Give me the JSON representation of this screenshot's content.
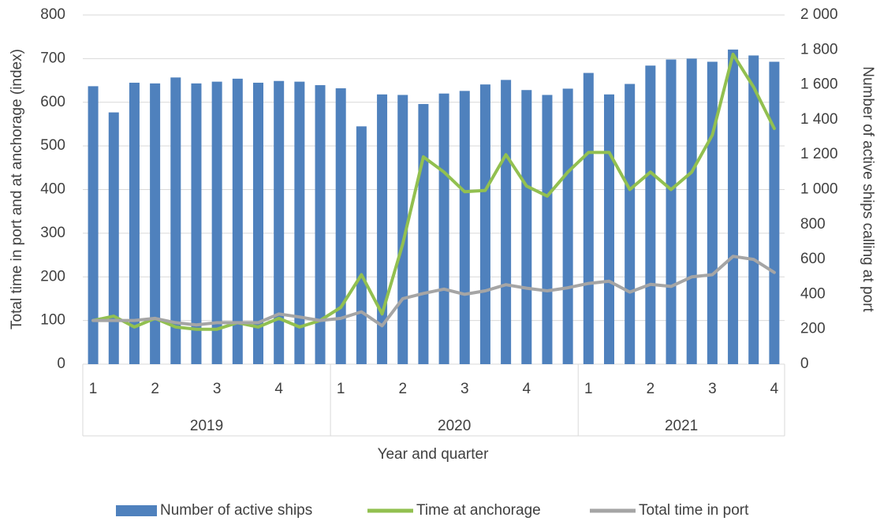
{
  "chart_data": {
    "type": "bar-line",
    "x_label": "Year and quarter",
    "y_label": "Total time in port and at anchorage (index)",
    "y2_label": "Number of active ships calling at port",
    "categories": [
      "1",
      null,
      null,
      "2",
      null,
      null,
      "3",
      null,
      null,
      "4",
      null,
      null,
      "1",
      null,
      null,
      "2",
      null,
      null,
      "3",
      null,
      null,
      "4",
      null,
      null,
      "1",
      null,
      null,
      "2",
      null,
      null,
      "3",
      null,
      null,
      "4"
    ],
    "groups": [
      "2019",
      "2020",
      "2021"
    ],
    "ylim": [
      0,
      800
    ],
    "yticks": [
      0,
      100,
      200,
      300,
      400,
      500,
      600,
      700,
      800
    ],
    "y2lim": [
      0,
      2000
    ],
    "y2ticks": [
      0,
      200,
      400,
      600,
      800,
      {
        "value": 1000,
        "label": "1 000"
      },
      {
        "value": 1200,
        "label": "1 200"
      },
      {
        "value": 1400,
        "label": "1 400"
      },
      {
        "value": 1600,
        "label": "1 600"
      },
      {
        "value": 1800,
        "label": "1 800"
      },
      {
        "value": 2000,
        "label": "2 000"
      }
    ],
    "grid": true,
    "legend": "bottom",
    "series": [
      {
        "name": "Number of active ships",
        "type": "bar",
        "axis": "y2",
        "color": "#4f81bd",
        "values": [
          1592,
          1442,
          1612,
          1608,
          1642,
          1608,
          1618,
          1635,
          1612,
          1622,
          1618,
          1598,
          1580,
          1362,
          1545,
          1542,
          1490,
          1550,
          1565,
          1602,
          1628,
          1570,
          1542,
          1578,
          1668,
          1545,
          1605,
          1710,
          1745,
          1750,
          1732,
          1802,
          1768,
          1732
        ]
      },
      {
        "name": "Time at anchorage",
        "type": "line",
        "axis": "y",
        "color": "#92c050",
        "values": [
          100,
          110,
          85,
          105,
          85,
          80,
          80,
          95,
          85,
          105,
          85,
          100,
          130,
          205,
          115,
          275,
          475,
          440,
          395,
          398,
          480,
          408,
          385,
          440,
          485,
          485,
          400,
          440,
          400,
          440,
          525,
          710,
          635,
          540
        ]
      },
      {
        "name": "Total time in port",
        "type": "line",
        "axis": "y",
        "color": "#a5a5a5",
        "values": [
          100,
          100,
          100,
          105,
          95,
          90,
          95,
          95,
          95,
          115,
          108,
          100,
          105,
          120,
          88,
          150,
          162,
          172,
          160,
          168,
          182,
          174,
          168,
          175,
          185,
          190,
          165,
          183,
          178,
          200,
          205,
          247,
          240,
          210
        ]
      }
    ]
  }
}
